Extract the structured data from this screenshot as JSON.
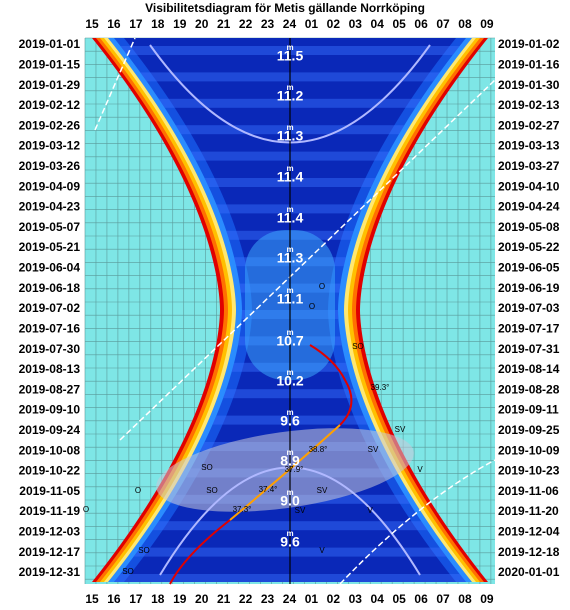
{
  "title": "Visibilitetsdiagram för Metis gällande Norrköping",
  "hours": [
    "15",
    "16",
    "17",
    "18",
    "19",
    "20",
    "21",
    "22",
    "23",
    "24",
    "01",
    "02",
    "03",
    "04",
    "05",
    "06",
    "07",
    "08",
    "09"
  ],
  "left_dates": [
    "2019-01-01",
    "2019-01-15",
    "2019-01-29",
    "2019-02-12",
    "2019-02-26",
    "2019-03-12",
    "2019-03-26",
    "2019-04-09",
    "2019-04-23",
    "2019-05-07",
    "2019-05-21",
    "2019-06-04",
    "2019-06-18",
    "2019-07-02",
    "2019-07-16",
    "2019-07-30",
    "2019-08-13",
    "2019-08-27",
    "2019-09-10",
    "2019-09-24",
    "2019-10-08",
    "2019-10-22",
    "2019-11-05",
    "2019-11-19",
    "2019-12-03",
    "2019-12-17",
    "2019-12-31"
  ],
  "right_dates": [
    "2019-01-02",
    "2019-01-16",
    "2019-01-30",
    "2019-02-13",
    "2019-02-27",
    "2019-03-13",
    "2019-03-27",
    "2019-04-10",
    "2019-04-24",
    "2019-05-08",
    "2019-05-22",
    "2019-06-05",
    "2019-06-19",
    "2019-07-03",
    "2019-07-17",
    "2019-07-31",
    "2019-08-14",
    "2019-08-28",
    "2019-09-11",
    "2019-09-25",
    "2019-10-09",
    "2019-10-23",
    "2019-11-06",
    "2019-11-20",
    "2019-12-04",
    "2019-12-18",
    "2020-01-01"
  ],
  "magnitude_unit": "m",
  "magnitudes": [
    "11.5",
    "11.2",
    "11.3",
    "11.4",
    "11.4",
    "11.3",
    "11.1",
    "10.7",
    "10.2",
    "9.6",
    "8.9",
    "9.0",
    "9.6"
  ],
  "annotations": [
    "O",
    "O",
    "SO",
    "39.3°",
    "SV",
    "38.8°",
    "SV",
    "37.9°",
    "V",
    "37.4°",
    "SO",
    "SO",
    "SV",
    "37.3°",
    "SV",
    "V",
    "O",
    "O",
    "SO",
    "V",
    "SO"
  ]
}
